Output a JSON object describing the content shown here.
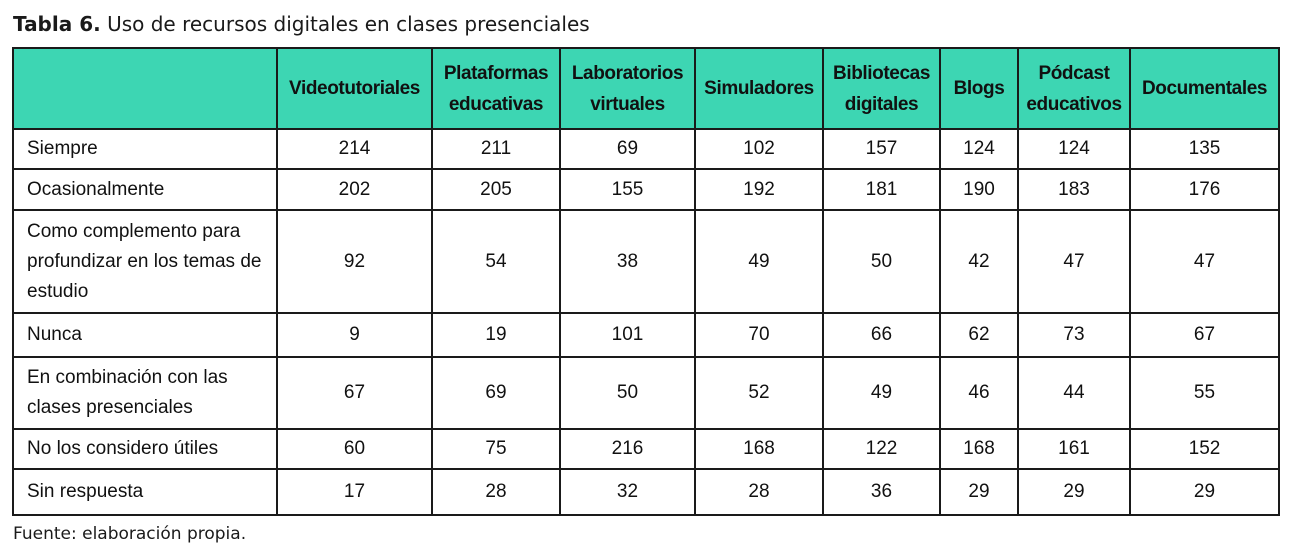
{
  "caption": {
    "label": "Tabla 6.",
    "text": " Uso de recursos digitales en clases presenciales"
  },
  "header_color": "#3dd6b3",
  "table": {
    "corner": "",
    "columns": [
      "Videotutoriales",
      "Plataformas educativas",
      "Laboratorios virtuales",
      "Simuladores",
      "Bibliotecas digitales",
      "Blogs",
      "Pódcast educativos",
      "Documentales"
    ],
    "rows": [
      {
        "label": "Siempre",
        "values": [
          "214",
          "211",
          "69",
          "102",
          "157",
          "124",
          "124",
          "135"
        ]
      },
      {
        "label": "Ocasionalmente",
        "values": [
          "202",
          "205",
          "155",
          "192",
          "181",
          "190",
          "183",
          "176"
        ]
      },
      {
        "label": "Como complemento para profundizar en los temas de estudio",
        "values": [
          "92",
          "54",
          "38",
          "49",
          "50",
          "42",
          "47",
          "47"
        ]
      },
      {
        "label": "Nunca",
        "values": [
          "9",
          "19",
          "101",
          "70",
          "66",
          "62",
          "73",
          "67"
        ]
      },
      {
        "label": "En combinación con las clases presenciales",
        "values": [
          "67",
          "69",
          "50",
          "52",
          "49",
          "46",
          "44",
          "55"
        ]
      },
      {
        "label": "No los considero útiles",
        "values": [
          "60",
          "75",
          "216",
          "168",
          "122",
          "168",
          "161",
          "152"
        ]
      },
      {
        "label": "Sin respuesta",
        "values": [
          "17",
          "28",
          "32",
          "28",
          "36",
          "29",
          "29",
          "29"
        ]
      }
    ]
  },
  "source": "Fuente: elaboración propia."
}
